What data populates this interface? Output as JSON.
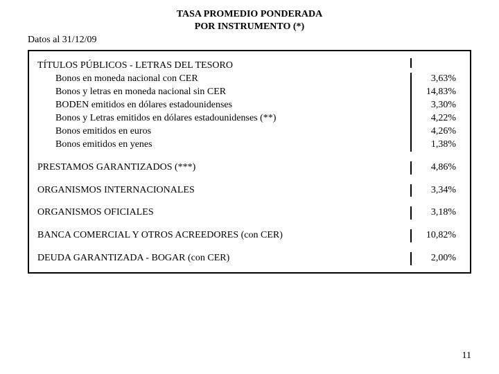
{
  "title_line1": "TASA PROMEDIO PONDERADA",
  "title_line2": "POR INSTRUMENTO (*)",
  "date_line": "Datos al 31/12/09",
  "sections": [
    {
      "header": "TÍTULOS PÚBLICOS - LETRAS DEL TESORO",
      "header_value": "",
      "items": [
        {
          "label": "Bonos en moneda nacional con CER",
          "value": "3,63%"
        },
        {
          "label": "Bonos y letras en moneda nacional sin CER",
          "value": "14,83%"
        },
        {
          "label": "BODEN emitidos en dólares estadounidenses",
          "value": "3,30%"
        },
        {
          "label": "Bonos y Letras emitidos en dólares estadounidenses (**)",
          "value": "4,22%"
        },
        {
          "label": "Bonos emitidos en euros",
          "value": "4,26%"
        },
        {
          "label": "Bonos emitidos en yenes",
          "value": "1,38%"
        }
      ]
    },
    {
      "header": "PRESTAMOS GARANTIZADOS (***)",
      "header_value": "4,86%",
      "items": []
    },
    {
      "header": "ORGANISMOS INTERNACIONALES",
      "header_value": "3,34%",
      "items": []
    },
    {
      "header": "ORGANISMOS OFICIALES",
      "header_value": "3,18%",
      "items": []
    },
    {
      "header": "BANCA COMERCIAL Y OTROS ACREEDORES (con CER)",
      "header_value": "10,82%",
      "items": []
    },
    {
      "header": "DEUDA GARANTIZADA - BOGAR (con CER)",
      "header_value": "2,00%",
      "items": []
    }
  ],
  "page_number": "11",
  "colors": {
    "background": "#ffffff",
    "text": "#000000",
    "border": "#000000"
  },
  "font": {
    "family": "Times New Roman",
    "base_size_pt": 14
  }
}
